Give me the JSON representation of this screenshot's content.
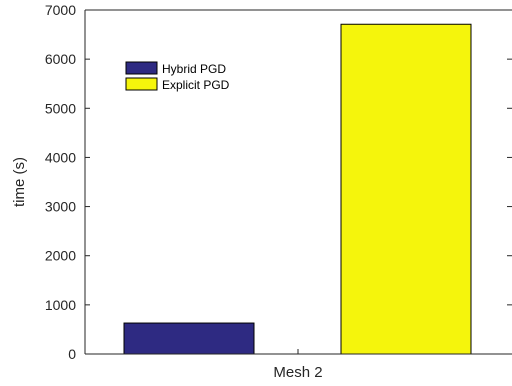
{
  "chart_data": {
    "type": "bar",
    "categories": [
      "Mesh 2"
    ],
    "series": [
      {
        "name": "Hybrid PGD",
        "values": [
          630
        ],
        "color": "#2e2a82"
      },
      {
        "name": "Explicit PGD",
        "values": [
          6710
        ],
        "color": "#f5f50c"
      }
    ],
    "title": "",
    "xlabel": "Mesh 2",
    "ylabel": "time (s)",
    "ylim": [
      0,
      7000
    ],
    "yticks": [
      0,
      1000,
      2000,
      3000,
      4000,
      5000,
      6000,
      7000
    ],
    "grid": false,
    "legend_position": "top-left"
  }
}
